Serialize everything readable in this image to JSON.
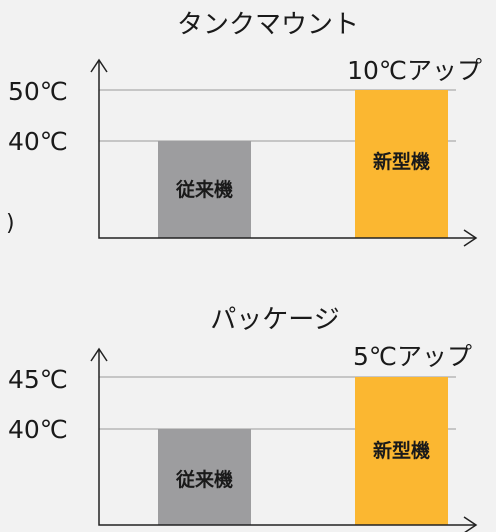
{
  "chart_data": [
    {
      "type": "bar",
      "title": "タンクマウント",
      "categories": [
        "従来機",
        "新型機"
      ],
      "values": [
        40,
        50
      ],
      "unit": "℃",
      "yticks": [
        "50℃",
        "40℃"
      ],
      "annotation": "10℃アップ",
      "colors": [
        "#9d9d9f",
        "#fbb731"
      ],
      "label_colors": [
        "#1a1a1a",
        "#1a1a1a"
      ]
    },
    {
      "type": "bar",
      "title": "パッケージ",
      "categories": [
        "従来機",
        "新型機"
      ],
      "values": [
        40,
        45
      ],
      "unit": "℃",
      "yticks": [
        "45℃",
        "40℃"
      ],
      "annotation": "5℃アップ",
      "colors": [
        "#9d9d9f",
        "#fbb731"
      ],
      "label_colors": [
        "#1a1a1a",
        "#1a1a1a"
      ]
    }
  ],
  "side_mark": ")"
}
